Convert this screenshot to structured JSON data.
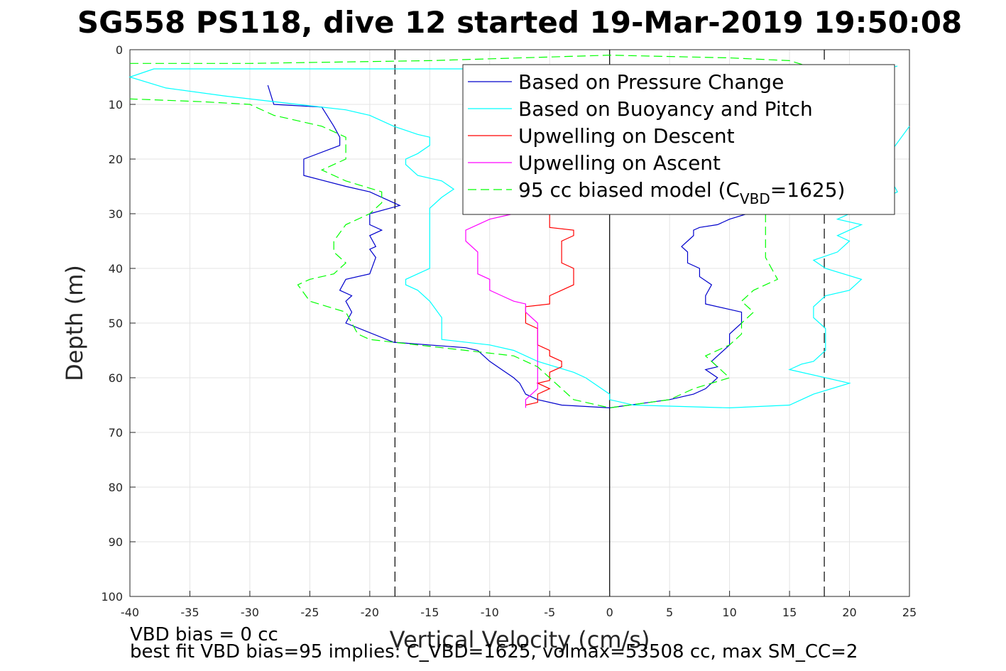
{
  "chart_data": {
    "type": "line",
    "title": "SG558 PS118, dive 12 started 19-Mar-2019 19:50:08",
    "xlabel": "Vertical Velocity (cm/s)",
    "ylabel": "Depth (m)",
    "xlim": [
      -40,
      25
    ],
    "ylim": [
      0,
      100
    ],
    "y_reversed": true,
    "grid": true,
    "x_ticks": [
      -40,
      -35,
      -30,
      -25,
      -20,
      -15,
      -10,
      -5,
      0,
      5,
      10,
      15,
      20,
      25
    ],
    "y_ticks": [
      0,
      10,
      20,
      30,
      40,
      50,
      60,
      70,
      80,
      90,
      100
    ],
    "reference_lines": [
      {
        "type": "vertical",
        "x": 0,
        "style": "solid",
        "color": "#000000"
      },
      {
        "type": "vertical",
        "x": -17.9,
        "style": "dashed",
        "color": "#000000"
      },
      {
        "type": "vertical",
        "x": 17.9,
        "style": "dashed",
        "color": "#000000"
      }
    ],
    "legend_position": "top-right",
    "series": [
      {
        "name": "Based on Pressure Change",
        "color": "#0000cc",
        "style": "solid",
        "points": [
          [
            -28.5,
            6.5
          ],
          [
            -28,
            10
          ],
          [
            -24,
            10.5
          ],
          [
            -23,
            14
          ],
          [
            -22.5,
            16
          ],
          [
            -22.5,
            17.5
          ],
          [
            -25.5,
            20
          ],
          [
            -25.5,
            23
          ],
          [
            -22,
            25
          ],
          [
            -20,
            26
          ],
          [
            -19,
            27
          ],
          [
            -17.5,
            28.5
          ],
          [
            -20,
            30
          ],
          [
            -20,
            32
          ],
          [
            -19,
            33
          ],
          [
            -20,
            34
          ],
          [
            -19.5,
            36
          ],
          [
            -20,
            36.5
          ],
          [
            -19.5,
            38
          ],
          [
            -20,
            41
          ],
          [
            -22,
            42
          ],
          [
            -22.5,
            44
          ],
          [
            -21.5,
            45
          ],
          [
            -22,
            46
          ],
          [
            -21.5,
            48
          ],
          [
            -22,
            50
          ],
          [
            -18,
            53.5
          ],
          [
            -12,
            54.5
          ],
          [
            -11,
            55
          ],
          [
            -10,
            57
          ],
          [
            -9,
            58.5
          ],
          [
            -8,
            60
          ],
          [
            -7.5,
            61
          ],
          [
            -7,
            63
          ],
          [
            -6,
            64
          ],
          [
            -4,
            65
          ],
          [
            0,
            65.5
          ],
          [
            1,
            65.2
          ],
          [
            5,
            64
          ],
          [
            7,
            63
          ],
          [
            8,
            62
          ],
          [
            9,
            60
          ],
          [
            8,
            58.5
          ],
          [
            9,
            58
          ],
          [
            8.5,
            57
          ],
          [
            10,
            54
          ],
          [
            10,
            52
          ],
          [
            11,
            50
          ],
          [
            11,
            48
          ],
          [
            8,
            46.5
          ],
          [
            8,
            45
          ],
          [
            8.5,
            43
          ],
          [
            7.5,
            41.5
          ],
          [
            7.5,
            40
          ],
          [
            6.5,
            39
          ],
          [
            6.5,
            37
          ],
          [
            6,
            36
          ],
          [
            6.5,
            35
          ],
          [
            7,
            34
          ],
          [
            7,
            33
          ],
          [
            7.5,
            32.5
          ],
          [
            9,
            32
          ],
          [
            10,
            31
          ],
          [
            11.5,
            30
          ],
          [
            12,
            29
          ]
        ]
      },
      {
        "name": "Based on Buoyancy and Pitch",
        "color": "#00ffff",
        "style": "solid",
        "points": [
          [
            24,
            3
          ],
          [
            22,
            4
          ],
          [
            5,
            4
          ],
          [
            -5,
            3.5
          ],
          [
            -38,
            3.5
          ],
          [
            -40,
            5
          ],
          [
            -37,
            7
          ],
          [
            -32,
            8.5
          ],
          [
            -26,
            10
          ],
          [
            -22,
            11
          ],
          [
            -20,
            12
          ],
          [
            -18,
            14
          ],
          [
            -16,
            15.5
          ],
          [
            -15,
            16
          ],
          [
            -15,
            17.5
          ],
          [
            -16,
            19
          ],
          [
            -17,
            20
          ],
          [
            -17,
            21
          ],
          [
            -16,
            23
          ],
          [
            -14,
            24
          ],
          [
            -13,
            25.5
          ],
          [
            -14,
            27
          ],
          [
            -15,
            29
          ],
          [
            -15,
            31
          ],
          [
            -15,
            34
          ],
          [
            -15,
            39
          ],
          [
            -15,
            40
          ],
          [
            -16,
            41
          ],
          [
            -17,
            42
          ],
          [
            -17,
            43
          ],
          [
            -16,
            44
          ],
          [
            -15,
            46
          ],
          [
            -14,
            49
          ],
          [
            -14,
            52
          ],
          [
            -14,
            53
          ],
          [
            -10,
            54
          ],
          [
            -8,
            55
          ],
          [
            -6,
            57
          ],
          [
            -3,
            59
          ],
          [
            -2,
            60
          ],
          [
            0,
            63
          ],
          [
            0,
            64
          ],
          [
            2,
            65
          ],
          [
            10,
            65.5
          ],
          [
            15,
            65
          ],
          [
            17,
            63
          ],
          [
            20,
            61
          ],
          [
            15,
            58.5
          ],
          [
            16,
            57.5
          ],
          [
            17,
            57
          ],
          [
            18,
            55
          ],
          [
            18,
            53
          ],
          [
            18,
            51
          ],
          [
            17,
            49
          ],
          [
            17,
            47
          ],
          [
            18,
            45
          ],
          [
            20,
            44
          ],
          [
            21,
            42
          ],
          [
            18,
            40
          ],
          [
            17,
            38.5
          ],
          [
            19,
            37
          ],
          [
            20,
            35
          ],
          [
            19,
            34
          ],
          [
            20,
            33
          ],
          [
            21,
            32
          ],
          [
            19,
            31
          ],
          [
            20,
            30
          ],
          [
            19,
            29
          ],
          [
            22,
            28
          ],
          [
            24,
            26
          ],
          [
            23,
            22
          ],
          [
            23,
            20
          ],
          [
            25,
            14
          ]
        ]
      },
      {
        "name": "Upwelling on Descent",
        "color": "#ff0000",
        "style": "solid",
        "points": [
          [
            -7,
            65
          ],
          [
            -6,
            64.5
          ],
          [
            -6,
            63
          ],
          [
            -5,
            62
          ],
          [
            -6,
            61
          ],
          [
            -5,
            60.5
          ],
          [
            -5,
            59
          ],
          [
            -4,
            58
          ],
          [
            -4,
            57
          ],
          [
            -5,
            56
          ],
          [
            -5,
            55
          ],
          [
            -6,
            54
          ],
          [
            -6,
            52.5
          ],
          [
            -6,
            51
          ],
          [
            -7,
            50
          ],
          [
            -7,
            48
          ],
          [
            -7,
            47
          ],
          [
            -5,
            46.5
          ],
          [
            -5,
            45
          ],
          [
            -4,
            44
          ],
          [
            -3,
            43
          ],
          [
            -3,
            42
          ],
          [
            -3,
            40
          ],
          [
            -4,
            39
          ],
          [
            -4,
            37
          ],
          [
            -4,
            36
          ],
          [
            -4,
            35
          ],
          [
            -3,
            34
          ],
          [
            -3,
            33
          ],
          [
            -5,
            32.5
          ],
          [
            -5,
            31
          ],
          [
            -5,
            30
          ]
        ]
      },
      {
        "name": "Upwelling on Ascent",
        "color": "#ff00ff",
        "style": "solid",
        "points": [
          [
            -7,
            65.5
          ],
          [
            -7,
            64
          ],
          [
            -6,
            62
          ],
          [
            -6,
            60
          ],
          [
            -6,
            58
          ],
          [
            -6,
            56
          ],
          [
            -6,
            54
          ],
          [
            -6,
            52
          ],
          [
            -6,
            50
          ],
          [
            -7,
            48
          ],
          [
            -7,
            46.5
          ],
          [
            -8,
            46
          ],
          [
            -9,
            45
          ],
          [
            -10,
            44
          ],
          [
            -10,
            42
          ],
          [
            -11,
            41
          ],
          [
            -11,
            39
          ],
          [
            -11,
            37
          ],
          [
            -12,
            35
          ],
          [
            -12,
            33
          ],
          [
            -11,
            32
          ],
          [
            -10,
            31
          ],
          [
            -8,
            30
          ]
        ]
      },
      {
        "name": "95 cc biased model (C_VBD=1625)",
        "color": "#00ff00",
        "style": "dashed",
        "points": [
          [
            -40,
            2.5
          ],
          [
            -30,
            2.5
          ],
          [
            -15,
            2
          ],
          [
            0,
            1
          ],
          [
            10,
            1.5
          ],
          [
            15,
            2
          ],
          [
            18,
            4
          ],
          [
            20,
            6
          ],
          [
            21,
            8
          ],
          [
            21,
            10
          ],
          [
            21,
            14
          ],
          [
            20,
            18
          ],
          [
            20,
            22
          ],
          [
            19,
            26
          ],
          [
            15,
            28
          ],
          [
            13,
            30
          ],
          [
            13,
            32
          ],
          [
            13,
            34
          ],
          [
            13,
            36
          ],
          [
            13,
            38
          ],
          [
            14,
            42
          ],
          [
            12,
            44
          ],
          [
            11,
            46
          ],
          [
            12,
            48
          ],
          [
            11,
            50
          ],
          [
            11,
            52
          ],
          [
            10,
            54
          ],
          [
            8,
            56
          ],
          [
            9,
            58
          ],
          [
            10,
            60
          ],
          [
            7,
            62
          ],
          [
            5,
            64
          ],
          [
            0,
            65.5
          ],
          [
            -1,
            65
          ],
          [
            -3,
            64
          ],
          [
            -4,
            62
          ],
          [
            -5,
            60
          ],
          [
            -6,
            58
          ],
          [
            -8,
            56
          ],
          [
            -12,
            55
          ],
          [
            -20,
            53
          ],
          [
            -21,
            52
          ],
          [
            -22,
            48
          ],
          [
            -25,
            46
          ],
          [
            -26,
            43
          ],
          [
            -25,
            42
          ],
          [
            -23,
            41
          ],
          [
            -22,
            39
          ],
          [
            -23,
            37
          ],
          [
            -23,
            35
          ],
          [
            -22,
            32
          ],
          [
            -20,
            30
          ],
          [
            -19,
            28
          ],
          [
            -19,
            26
          ],
          [
            -22,
            24
          ],
          [
            -24,
            22
          ],
          [
            -22,
            20
          ],
          [
            -22,
            18
          ],
          [
            -22,
            16
          ],
          [
            -24,
            14
          ],
          [
            -28,
            12
          ],
          [
            -30,
            10
          ],
          [
            -34,
            9.5
          ],
          [
            -40,
            9
          ]
        ]
      }
    ],
    "legend": [
      {
        "label": "Based on Pressure Change",
        "color": "#0000cc",
        "style": "solid"
      },
      {
        "label": "Based on Buoyancy and Pitch",
        "color": "#00ffff",
        "style": "solid"
      },
      {
        "label": "Upwelling on Descent",
        "color": "#ff0000",
        "style": "solid"
      },
      {
        "label": "Upwelling on Ascent",
        "color": "#ff00ff",
        "style": "solid"
      },
      {
        "label_main": "95 cc biased model (C",
        "label_sub": "VBD",
        "label_end": "=1625)",
        "color": "#00ff00",
        "style": "dashed"
      }
    ]
  },
  "footer": {
    "line1": "VBD bias = 0 cc",
    "line2": "best fit VBD bias=95 implies: C_VBD=1625, volmax=53508 cc, max SM_CC=2"
  }
}
